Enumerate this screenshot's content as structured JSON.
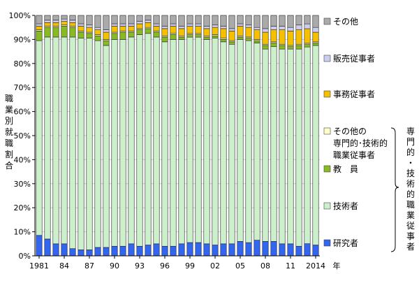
{
  "chart_data": {
    "type": "bar",
    "stacked": true,
    "percent": true,
    "ylabel": "職業別就職割合",
    "ylim": [
      0,
      100
    ],
    "y_ticks": [
      "0%",
      "10%",
      "20%",
      "30%",
      "40%",
      "50%",
      "60%",
      "70%",
      "80%",
      "90%",
      "100%"
    ],
    "x_tick_labels": [
      "1981",
      "84",
      "87",
      "90",
      "93",
      "96",
      "99",
      "02",
      "05",
      "08",
      "11",
      "2014"
    ],
    "x_unit": "年",
    "categories": [
      "1981",
      "1982",
      "1983",
      "1984",
      "1985",
      "1986",
      "1987",
      "1988",
      "1989",
      "1990",
      "1991",
      "1992",
      "1993",
      "1994",
      "1995",
      "1996",
      "1997",
      "1998",
      "1999",
      "2000",
      "2001",
      "2002",
      "2003",
      "2004",
      "2005",
      "2006",
      "2007",
      "2008",
      "2009",
      "2010",
      "2011",
      "2012",
      "2013",
      "2014"
    ],
    "series": [
      {
        "name": "研究者",
        "color": "#3366ee",
        "values": [
          8.5,
          7,
          5,
          5,
          3,
          2.5,
          2.5,
          3.5,
          3.5,
          4,
          4,
          5,
          4,
          4.5,
          5,
          4,
          4,
          5,
          5.5,
          5.5,
          5,
          4.5,
          5,
          5,
          6,
          5.5,
          6.5,
          6,
          6,
          5,
          5,
          4,
          5,
          4.5
        ]
      },
      {
        "name": "技術者",
        "color": "#ccf0cc",
        "values": [
          81,
          84,
          86,
          86,
          88,
          88,
          88,
          86,
          84,
          86,
          86,
          86,
          88,
          88,
          86,
          85,
          86,
          85,
          85,
          85,
          85,
          86,
          84,
          83,
          84,
          84,
          82,
          80,
          81,
          81,
          81,
          82,
          81,
          83
        ]
      },
      {
        "name": "教員",
        "color": "#88bb22",
        "values": [
          4,
          4,
          4,
          4.5,
          4,
          2.5,
          2,
          2,
          2,
          2.5,
          3,
          2,
          2,
          2,
          2,
          2,
          2,
          1,
          1,
          1,
          1,
          1,
          1,
          1,
          1,
          1,
          1,
          1.5,
          1.5,
          1.5,
          1,
          1.5,
          1,
          1
        ]
      },
      {
        "name": "その他の専門的・技術的職業従事者",
        "color": "#ffffcc",
        "values": [
          0.5,
          0.5,
          0.5,
          0.5,
          0.5,
          0.5,
          0.5,
          0.5,
          0.5,
          0.5,
          0.5,
          0.5,
          0.5,
          0.5,
          0.5,
          0.5,
          0.5,
          0.5,
          0.5,
          0.5,
          0.5,
          0.5,
          0.5,
          0.5,
          0.5,
          0.5,
          0.5,
          0.5,
          0.5,
          0.5,
          0.5,
          0.5,
          0.5,
          0.5
        ]
      },
      {
        "name": "事務従事者",
        "color": "#f5c000",
        "values": [
          1.5,
          1.5,
          1.5,
          1.5,
          1.5,
          2,
          2,
          2,
          3,
          2.5,
          2,
          2,
          2,
          2,
          2,
          3,
          3,
          3,
          3,
          3,
          3,
          3,
          4,
          4,
          4,
          4,
          4,
          5,
          5,
          6,
          6,
          6,
          6,
          4
        ]
      },
      {
        "name": "販売従事者",
        "color": "#ccccf0",
        "values": [
          1,
          1,
          1,
          1,
          1,
          1,
          1,
          1,
          1,
          1,
          1,
          1,
          1,
          1,
          1,
          1,
          1,
          1,
          1,
          1,
          1,
          1,
          1,
          1,
          1,
          1,
          1,
          1.5,
          1.5,
          1.5,
          1.5,
          2,
          2,
          2
        ]
      },
      {
        "name": "その他",
        "color": "#aaaaaa",
        "values": [
          3.5,
          2,
          2,
          1.5,
          2,
          3.5,
          4,
          5,
          6,
          3.5,
          3.5,
          3.5,
          2.5,
          2,
          3.5,
          4.5,
          3.5,
          4.5,
          3.5,
          3.5,
          4.5,
          4,
          4.5,
          5.5,
          3.5,
          4,
          5,
          5.5,
          4.5,
          4.5,
          5,
          4,
          3.5,
          5
        ]
      }
    ],
    "legend_order": [
      "その他",
      "販売従事者",
      "事務従事者",
      "その他の専門的・技術的職業従事者",
      "教員",
      "技術者",
      "研究者"
    ],
    "legend_display": {
      "その他": [
        "その他"
      ],
      "販売従事者": [
        "販売従事者"
      ],
      "事務従事者": [
        "事務従事者"
      ],
      "その他の専門的・技術的職業従事者": [
        "その他の",
        "専門的･技術的",
        "職業従事者"
      ],
      "教員": [
        "教　員"
      ],
      "技術者": [
        "技術者"
      ],
      "研究者": [
        "研究者"
      ]
    },
    "bracket_label": "専門的・技術的職業従事者"
  }
}
